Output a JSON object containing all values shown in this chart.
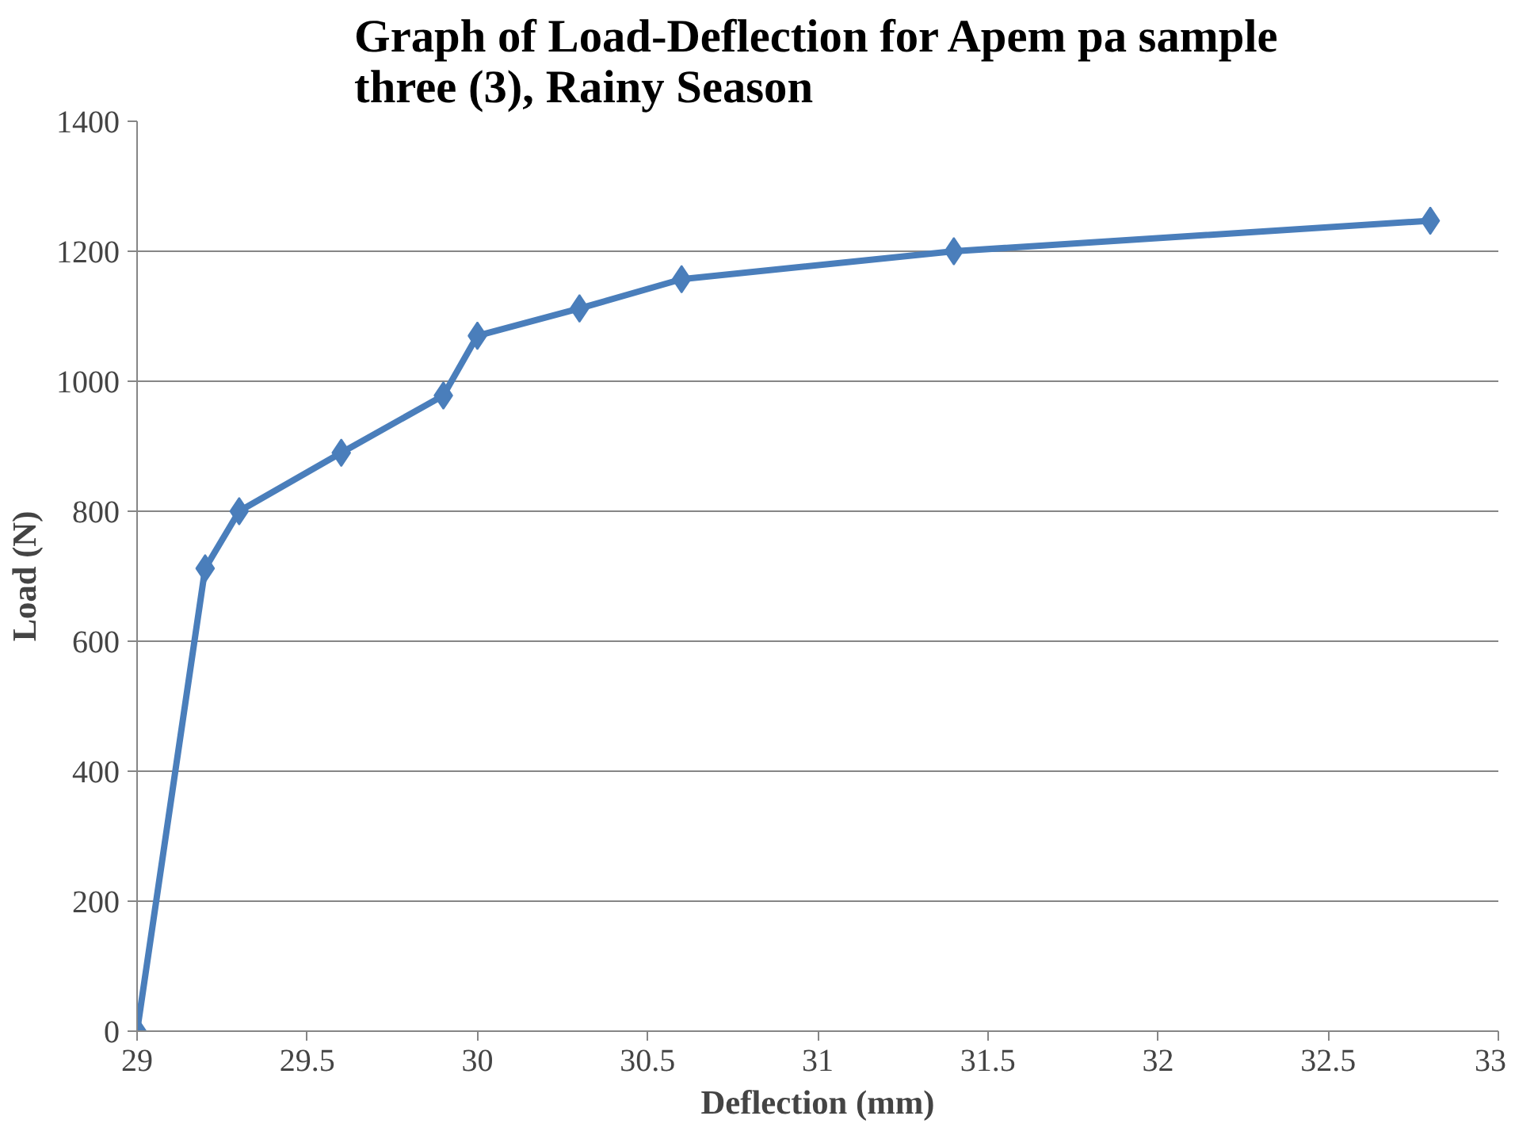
{
  "chart_data": {
    "type": "line",
    "title": "Graph of Load-Deflection for Apem pa sample\nthree (3), Rainy Season",
    "xlabel": "Deflection (mm)",
    "ylabel": "Load (N)",
    "x": [
      29,
      29.2,
      29.3,
      29.6,
      29.9,
      30,
      30.3,
      30.6,
      31.4,
      32.8
    ],
    "series": [
      {
        "color": "#4a7ebb",
        "values": [
          0,
          712,
          800,
          890,
          978,
          1070,
          1112,
          1157,
          1200,
          1247
        ]
      }
    ],
    "xlim": [
      29,
      33
    ],
    "xticks": [
      29,
      29.5,
      30,
      30.5,
      31,
      31.5,
      32,
      32.5,
      33
    ],
    "ylim": [
      0,
      1400
    ],
    "yticks": [
      0,
      200,
      400,
      600,
      800,
      1000,
      1200,
      1400
    ],
    "grid": "y",
    "marker": "diamond",
    "line_style": "solid"
  }
}
